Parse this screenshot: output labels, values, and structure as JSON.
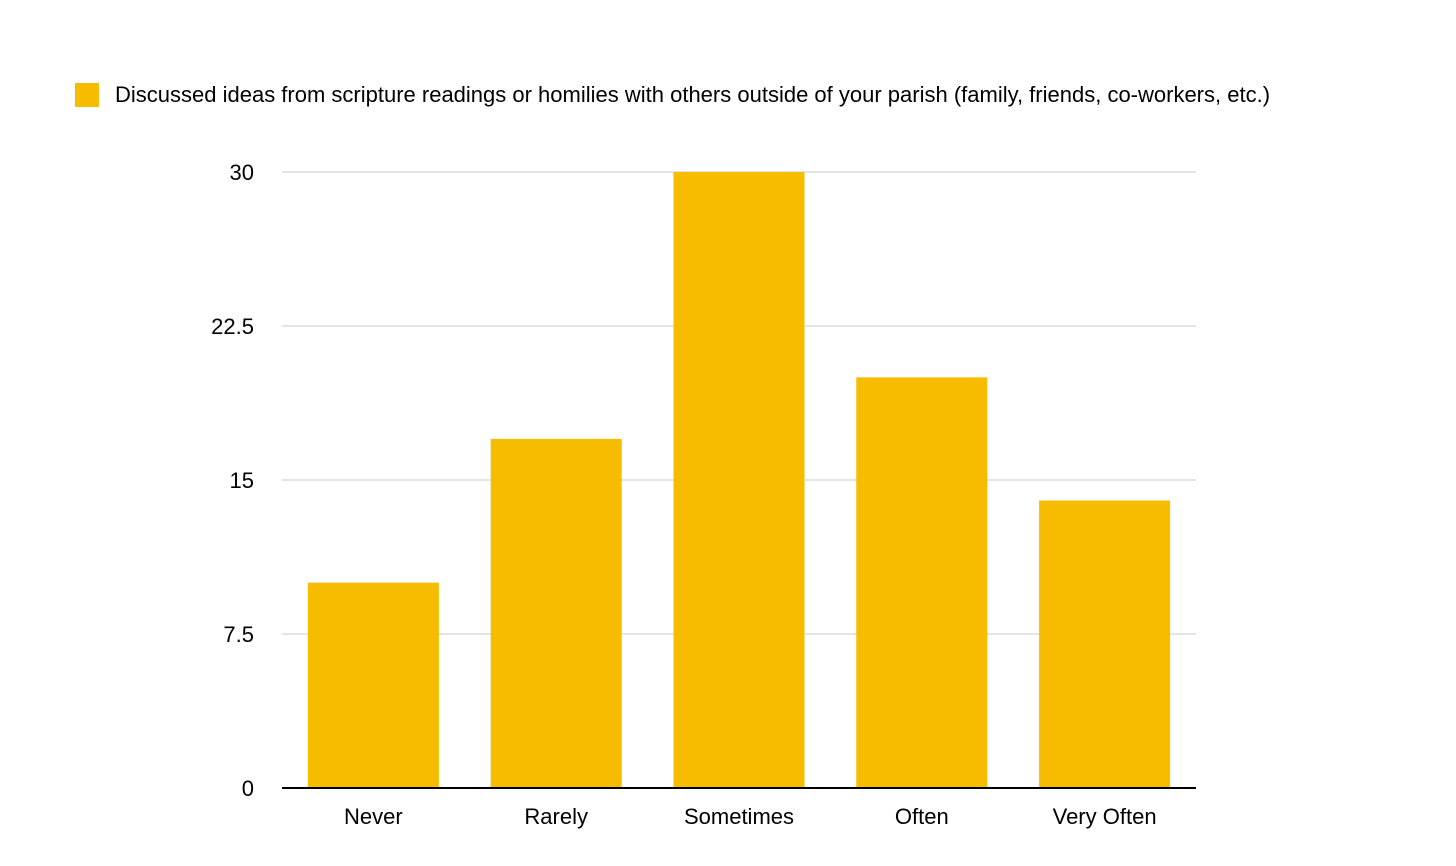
{
  "chart_data": {
    "type": "bar",
    "title": "",
    "xlabel": "",
    "ylabel": "",
    "categories": [
      "Never",
      "Rarely",
      "Sometimes",
      "Often",
      "Very Often"
    ],
    "series": [
      {
        "name": "Discussed ideas from scripture readings or homilies with others outside of your parish (family, friends, co-workers, etc.)",
        "values": [
          10,
          17,
          30,
          20,
          14
        ],
        "color": "#F7BC00"
      }
    ],
    "ylim": [
      0,
      30
    ],
    "yticks": [
      "0",
      "7.5",
      "15",
      "22.5",
      "30"
    ],
    "ytick_values": [
      0,
      7.5,
      15,
      22.5,
      30
    ],
    "grid": true,
    "legend_position": "top-left",
    "colors": {
      "bar": "#F7BC00",
      "grid": "#C8C8C8",
      "axis": "#000000"
    }
  }
}
